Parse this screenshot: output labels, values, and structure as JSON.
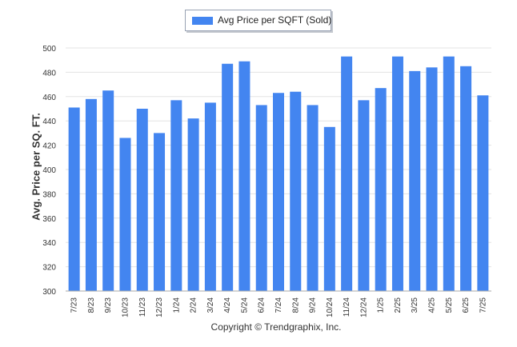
{
  "chart_data": {
    "type": "bar",
    "categories": [
      "7/23",
      "8/23",
      "9/23",
      "10/23",
      "11/23",
      "12/23",
      "1/24",
      "2/24",
      "3/24",
      "4/24",
      "5/24",
      "6/24",
      "7/24",
      "8/24",
      "9/24",
      "10/24",
      "11/24",
      "12/24",
      "1/25",
      "2/25",
      "3/25",
      "4/25",
      "5/25",
      "6/25",
      "7/25"
    ],
    "series": [
      {
        "name": "Avg Price per SQFT (Sold)",
        "values": [
          451,
          458,
          465,
          426,
          450,
          430,
          457,
          442,
          455,
          487,
          489,
          453,
          463,
          464,
          453,
          435,
          493,
          457,
          467,
          493,
          481,
          484,
          493,
          485,
          461
        ]
      }
    ],
    "title": "",
    "xlabel": "",
    "ylabel": "Avg. Price per SQ. FT.",
    "ylim": [
      300,
      500
    ],
    "yticks": [
      300,
      320,
      340,
      360,
      380,
      400,
      420,
      440,
      460,
      480,
      500
    ],
    "grid": true,
    "legend_position": "top-center",
    "colors": {
      "bar": "#4385f0",
      "grid": "#e3e3e3",
      "axis": "#aaaaaa"
    }
  },
  "footer": {
    "copyright": "Copyright © Trendgraphix, Inc."
  }
}
